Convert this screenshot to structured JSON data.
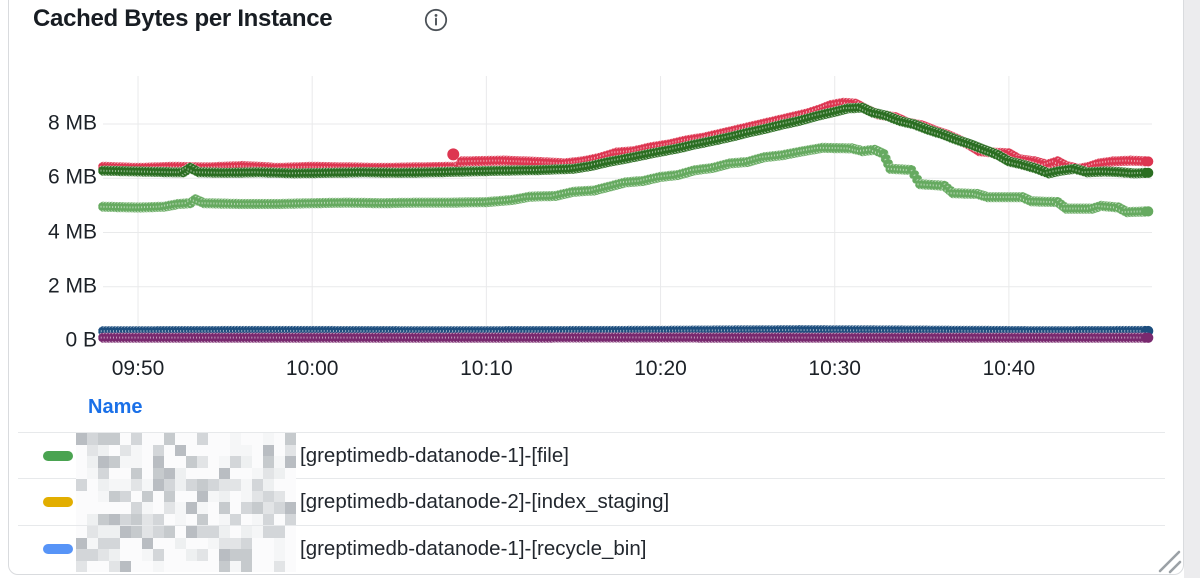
{
  "header": {
    "title": "Cached Bytes per Instance"
  },
  "chart_data": {
    "type": "scatter",
    "title": "Cached Bytes per Instance",
    "grid": true,
    "x_axis": {
      "unit": "time (HH:MM)",
      "visible_range": [
        "09:48",
        "10:48"
      ],
      "ticks": [
        {
          "label": "09:50",
          "t": 2
        },
        {
          "label": "10:00",
          "t": 12
        },
        {
          "label": "10:10",
          "t": 22
        },
        {
          "label": "10:20",
          "t": 32
        },
        {
          "label": "10:30",
          "t": 42
        },
        {
          "label": "10:40",
          "t": 52
        }
      ]
    },
    "y_axis": {
      "unit": "bytes (MB)",
      "max_mb": 9.8,
      "ticks": [
        {
          "label": "0 B",
          "v": 0
        },
        {
          "label": "2 MB",
          "v": 2
        },
        {
          "label": "4 MB",
          "v": 4
        },
        {
          "label": "6 MB",
          "v": 6
        },
        {
          "label": "8 MB",
          "v": 8
        }
      ]
    },
    "series": [
      {
        "id": "series-red",
        "color": "#dd3651",
        "style": "points",
        "points": [
          [
            0,
            6.42
          ],
          [
            2,
            6.38
          ],
          [
            4,
            6.42
          ],
          [
            6,
            6.4
          ],
          [
            8,
            6.45
          ],
          [
            9,
            6.42
          ],
          [
            10,
            6.38
          ],
          [
            12,
            6.42
          ],
          [
            14,
            6.4
          ],
          [
            16,
            6.38
          ],
          [
            18,
            6.4
          ],
          [
            20,
            6.42
          ],
          [
            20.4,
            6.42
          ],
          [
            20.6,
            6.62
          ],
          [
            23,
            6.65
          ],
          [
            25,
            6.6
          ],
          [
            26.5,
            6.55
          ],
          [
            27.5,
            6.62
          ],
          [
            28.5,
            6.75
          ],
          [
            29.5,
            6.95
          ],
          [
            30.5,
            7.0
          ],
          [
            31.5,
            7.15
          ],
          [
            32.5,
            7.25
          ],
          [
            33.5,
            7.4
          ],
          [
            34.5,
            7.5
          ],
          [
            35.5,
            7.65
          ],
          [
            36.5,
            7.8
          ],
          [
            37.5,
            7.95
          ],
          [
            38.5,
            8.1
          ],
          [
            39.5,
            8.25
          ],
          [
            40.5,
            8.4
          ],
          [
            41.2,
            8.55
          ],
          [
            41.8,
            8.7
          ],
          [
            42.5,
            8.78
          ],
          [
            43.2,
            8.75
          ],
          [
            43.8,
            8.55
          ],
          [
            44.5,
            8.35
          ],
          [
            45.5,
            8.25
          ],
          [
            46.2,
            8.05
          ],
          [
            47,
            7.95
          ],
          [
            47.8,
            7.75
          ],
          [
            48.5,
            7.6
          ],
          [
            49.2,
            7.4
          ],
          [
            49.8,
            7.2
          ],
          [
            50.3,
            7.0
          ],
          [
            51,
            6.95
          ],
          [
            52,
            6.92
          ],
          [
            52.6,
            6.7
          ],
          [
            53.5,
            6.62
          ],
          [
            54.2,
            6.5
          ],
          [
            54.8,
            6.62
          ],
          [
            55.3,
            6.45
          ],
          [
            56,
            6.35
          ],
          [
            56.6,
            6.42
          ],
          [
            57.2,
            6.55
          ],
          [
            58,
            6.62
          ],
          [
            59,
            6.65
          ],
          [
            60,
            6.62
          ]
        ]
      },
      {
        "id": "series-dark-green",
        "color": "#2b6e22",
        "style": "points",
        "points": [
          [
            0,
            6.28
          ],
          [
            2,
            6.25
          ],
          [
            4,
            6.22
          ],
          [
            4.6,
            6.22
          ],
          [
            5,
            6.38
          ],
          [
            5.5,
            6.22
          ],
          [
            7,
            6.2
          ],
          [
            9,
            6.22
          ],
          [
            11,
            6.18
          ],
          [
            13,
            6.2
          ],
          [
            15,
            6.22
          ],
          [
            17,
            6.2
          ],
          [
            19,
            6.22
          ],
          [
            21,
            6.25
          ],
          [
            23,
            6.28
          ],
          [
            25,
            6.3
          ],
          [
            27,
            6.35
          ],
          [
            28,
            6.45
          ],
          [
            29,
            6.6
          ],
          [
            30,
            6.72
          ],
          [
            31,
            6.85
          ],
          [
            32,
            6.98
          ],
          [
            33,
            7.1
          ],
          [
            34,
            7.25
          ],
          [
            35,
            7.38
          ],
          [
            36,
            7.52
          ],
          [
            37,
            7.68
          ],
          [
            38,
            7.82
          ],
          [
            39,
            7.98
          ],
          [
            40,
            8.12
          ],
          [
            41,
            8.3
          ],
          [
            42,
            8.45
          ],
          [
            42.8,
            8.58
          ],
          [
            43.6,
            8.6
          ],
          [
            44.2,
            8.42
          ],
          [
            45,
            8.3
          ],
          [
            45.8,
            8.1
          ],
          [
            46.6,
            7.98
          ],
          [
            47.4,
            7.78
          ],
          [
            48.2,
            7.62
          ],
          [
            49,
            7.42
          ],
          [
            49.8,
            7.25
          ],
          [
            50.6,
            7.05
          ],
          [
            51.4,
            6.85
          ],
          [
            52,
            6.62
          ],
          [
            52.8,
            6.5
          ],
          [
            53.6,
            6.35
          ],
          [
            54.3,
            6.18
          ],
          [
            55,
            6.28
          ],
          [
            55.8,
            6.35
          ],
          [
            56.5,
            6.22
          ],
          [
            57.5,
            6.25
          ],
          [
            58.5,
            6.22
          ],
          [
            59.2,
            6.18
          ],
          [
            60,
            6.2
          ]
        ]
      },
      {
        "id": "series-light-green",
        "color": "#66aa60",
        "style": "points",
        "points": [
          [
            0,
            4.95
          ],
          [
            2,
            4.92
          ],
          [
            3.5,
            4.95
          ],
          [
            4.3,
            5.05
          ],
          [
            5,
            5.08
          ],
          [
            5.3,
            5.22
          ],
          [
            5.8,
            5.08
          ],
          [
            8,
            5.05
          ],
          [
            10,
            5.05
          ],
          [
            12,
            5.08
          ],
          [
            14,
            5.1
          ],
          [
            16,
            5.08
          ],
          [
            18,
            5.1
          ],
          [
            20,
            5.1
          ],
          [
            22,
            5.12
          ],
          [
            23.5,
            5.2
          ],
          [
            24.5,
            5.32
          ],
          [
            26,
            5.35
          ],
          [
            27,
            5.5
          ],
          [
            28.2,
            5.55
          ],
          [
            29,
            5.68
          ],
          [
            30,
            5.85
          ],
          [
            31,
            5.9
          ],
          [
            32,
            6.05
          ],
          [
            33,
            6.12
          ],
          [
            34,
            6.3
          ],
          [
            35,
            6.38
          ],
          [
            36,
            6.55
          ],
          [
            37,
            6.6
          ],
          [
            38,
            6.78
          ],
          [
            39,
            6.85
          ],
          [
            40.2,
            7.0
          ],
          [
            41.3,
            7.12
          ],
          [
            43,
            7.1
          ],
          [
            43.6,
            7.0
          ],
          [
            44.3,
            7.05
          ],
          [
            44.8,
            6.9
          ],
          [
            45.2,
            6.35
          ],
          [
            46.4,
            6.3
          ],
          [
            46.9,
            5.78
          ],
          [
            48.3,
            5.72
          ],
          [
            48.8,
            5.45
          ],
          [
            50.2,
            5.42
          ],
          [
            50.8,
            5.3
          ],
          [
            52.8,
            5.3
          ],
          [
            53.3,
            5.15
          ],
          [
            54.8,
            5.12
          ],
          [
            55.3,
            4.88
          ],
          [
            56.8,
            4.88
          ],
          [
            57.3,
            4.98
          ],
          [
            58.3,
            4.92
          ],
          [
            58.8,
            4.75
          ],
          [
            60,
            4.78
          ]
        ]
      },
      {
        "id": "series-navy",
        "color": "#1d4e7e",
        "style": "points",
        "points": [
          [
            0,
            0.36
          ],
          [
            10,
            0.37
          ],
          [
            20,
            0.36
          ],
          [
            30,
            0.37
          ],
          [
            40,
            0.4
          ],
          [
            48,
            0.38
          ],
          [
            54,
            0.36
          ],
          [
            60,
            0.37
          ]
        ]
      },
      {
        "id": "series-purple",
        "color": "#79296f",
        "style": "points",
        "points": [
          [
            0,
            0.12
          ],
          [
            15,
            0.12
          ],
          [
            30,
            0.13
          ],
          [
            45,
            0.12
          ],
          [
            60,
            0.12
          ]
        ]
      }
    ],
    "outliers": [
      {
        "series": "series-red",
        "t": 20.1,
        "v": 6.88
      }
    ]
  },
  "legend": {
    "header": "Name",
    "header_color": "#1a70e8",
    "rows": [
      {
        "swatch_color": "#4aa351",
        "redacted_prefix": true,
        "name": "[greptimedb-datanode-1]-[file]"
      },
      {
        "swatch_color": "#e2ae00",
        "redacted_prefix": true,
        "name": "[greptimedb-datanode-2]-[index_staging]"
      },
      {
        "swatch_color": "#5794f7",
        "redacted_prefix": true,
        "name": "[greptimedb-datanode-1]-[recycle_bin]"
      }
    ]
  }
}
